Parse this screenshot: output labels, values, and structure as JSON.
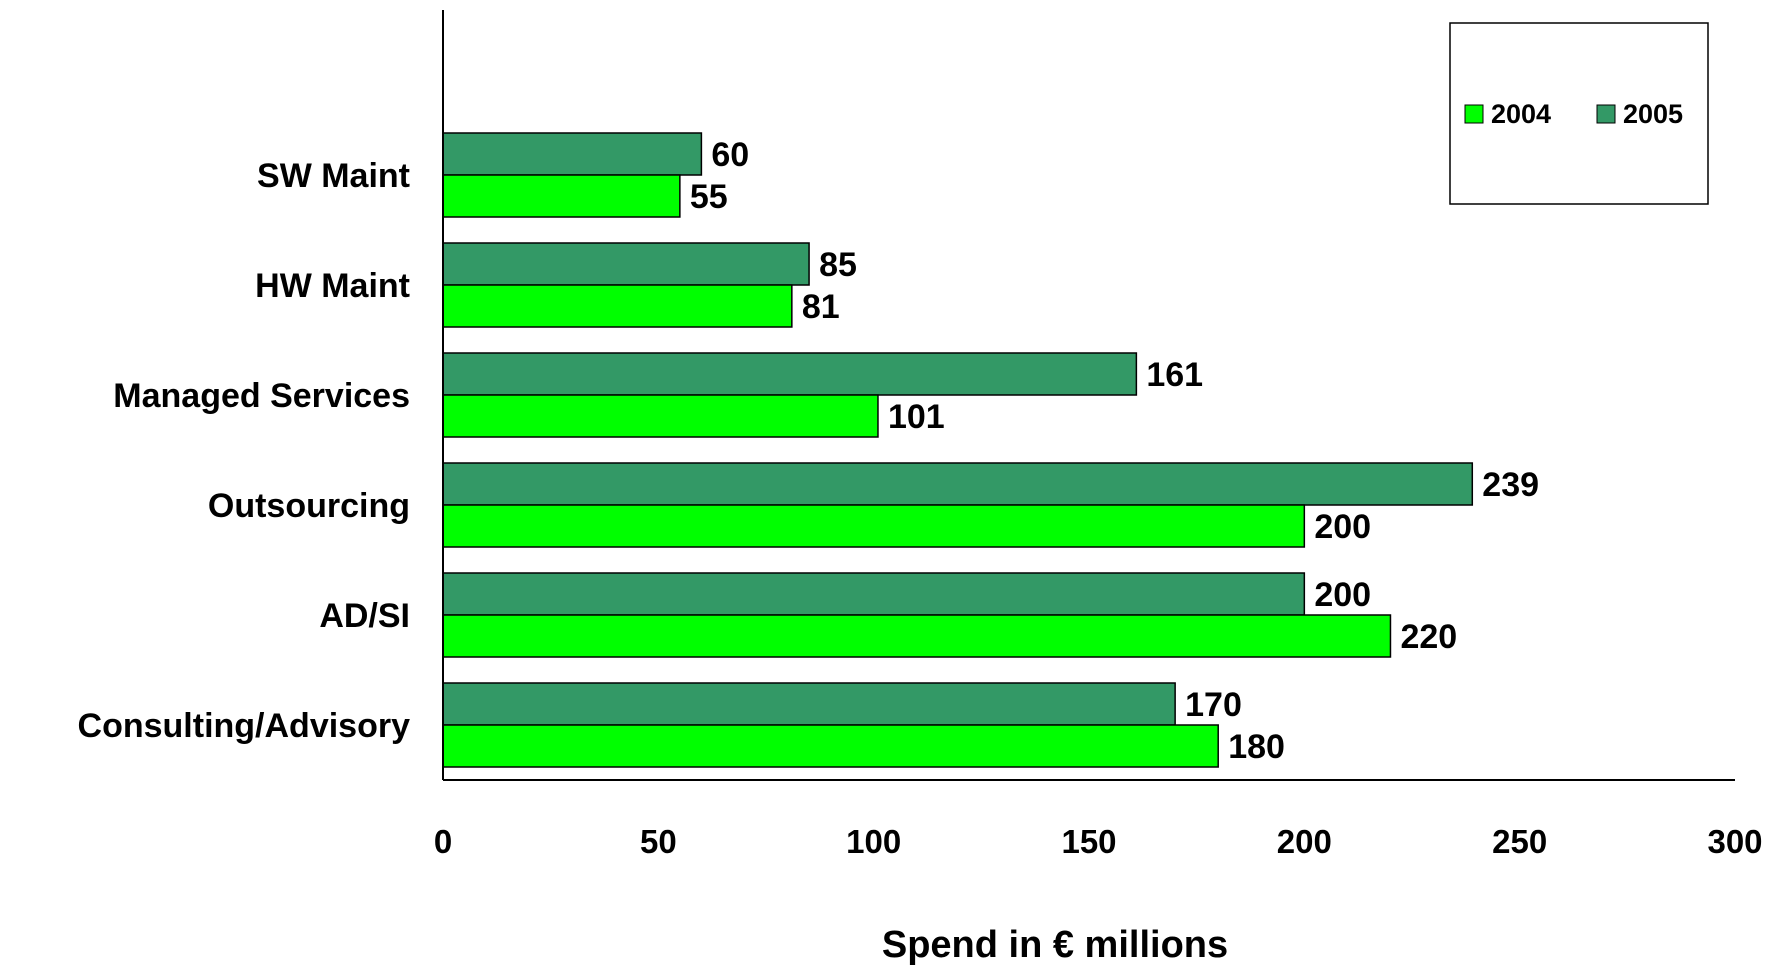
{
  "chart_data": {
    "type": "bar",
    "orientation": "horizontal",
    "categories": [
      "SW Maint",
      "HW Maint",
      "Managed Services",
      "Outsourcing",
      "AD/SI",
      "Consulting/Advisory"
    ],
    "series": [
      {
        "name": "2004",
        "color": "#00ff00",
        "values": [
          55,
          81,
          101,
          200,
          220,
          180
        ]
      },
      {
        "name": "2005",
        "color": "#339966",
        "values": [
          60,
          85,
          161,
          239,
          200,
          170
        ]
      }
    ],
    "xlabel": "Spend in € millions",
    "ylabel": "",
    "xlim": [
      0,
      300
    ],
    "xticks": [
      0,
      50,
      100,
      150,
      200,
      250,
      300
    ],
    "grid": false,
    "legend_position": "top-right"
  }
}
